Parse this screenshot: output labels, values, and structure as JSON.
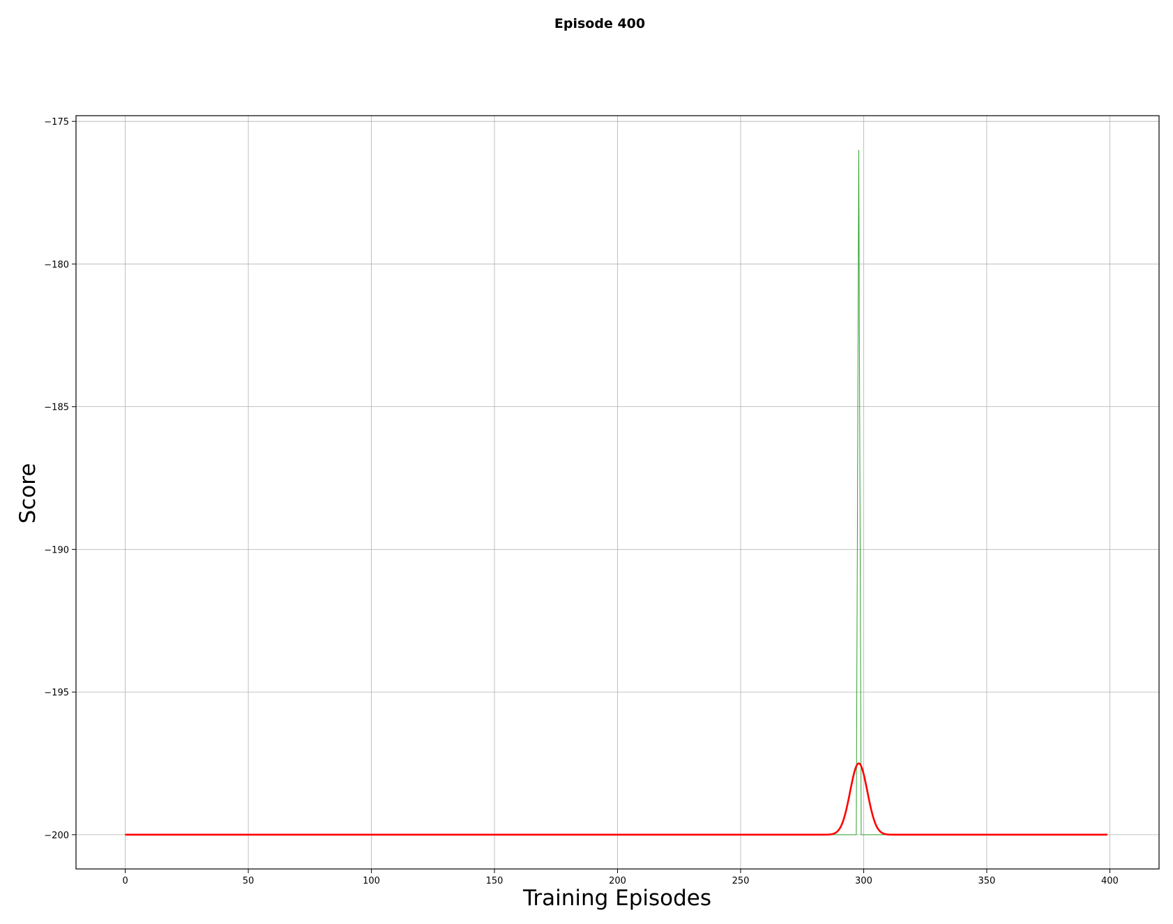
{
  "chart_data": {
    "type": "line",
    "title": "Episode 400",
    "xlabel": "Training Episodes",
    "ylabel": "Score",
    "xlim": [
      -20,
      420
    ],
    "ylim": [
      -201.2,
      -174.8
    ],
    "xticks": [
      0,
      50,
      100,
      150,
      200,
      250,
      300,
      350,
      400
    ],
    "yticks": [
      -175,
      -180,
      -185,
      -190,
      -195,
      -200
    ],
    "ytick_labels": [
      "−175",
      "−180",
      "−185",
      "−190",
      "−195",
      "−200"
    ],
    "grid": true,
    "series": [
      {
        "color": "#2ca02c",
        "style": "thin raw scores",
        "x_range": [
          0,
          399
        ],
        "baseline": -200,
        "points": [
          [
            297,
            -200
          ],
          [
            298,
            -176
          ],
          [
            299,
            -200
          ]
        ]
      },
      {
        "color": "#ff0000",
        "style": "thick smoothed scores",
        "x_range": [
          0,
          399
        ],
        "baseline": -200,
        "peak": {
          "x": 298,
          "y": -197.5
        }
      }
    ]
  }
}
